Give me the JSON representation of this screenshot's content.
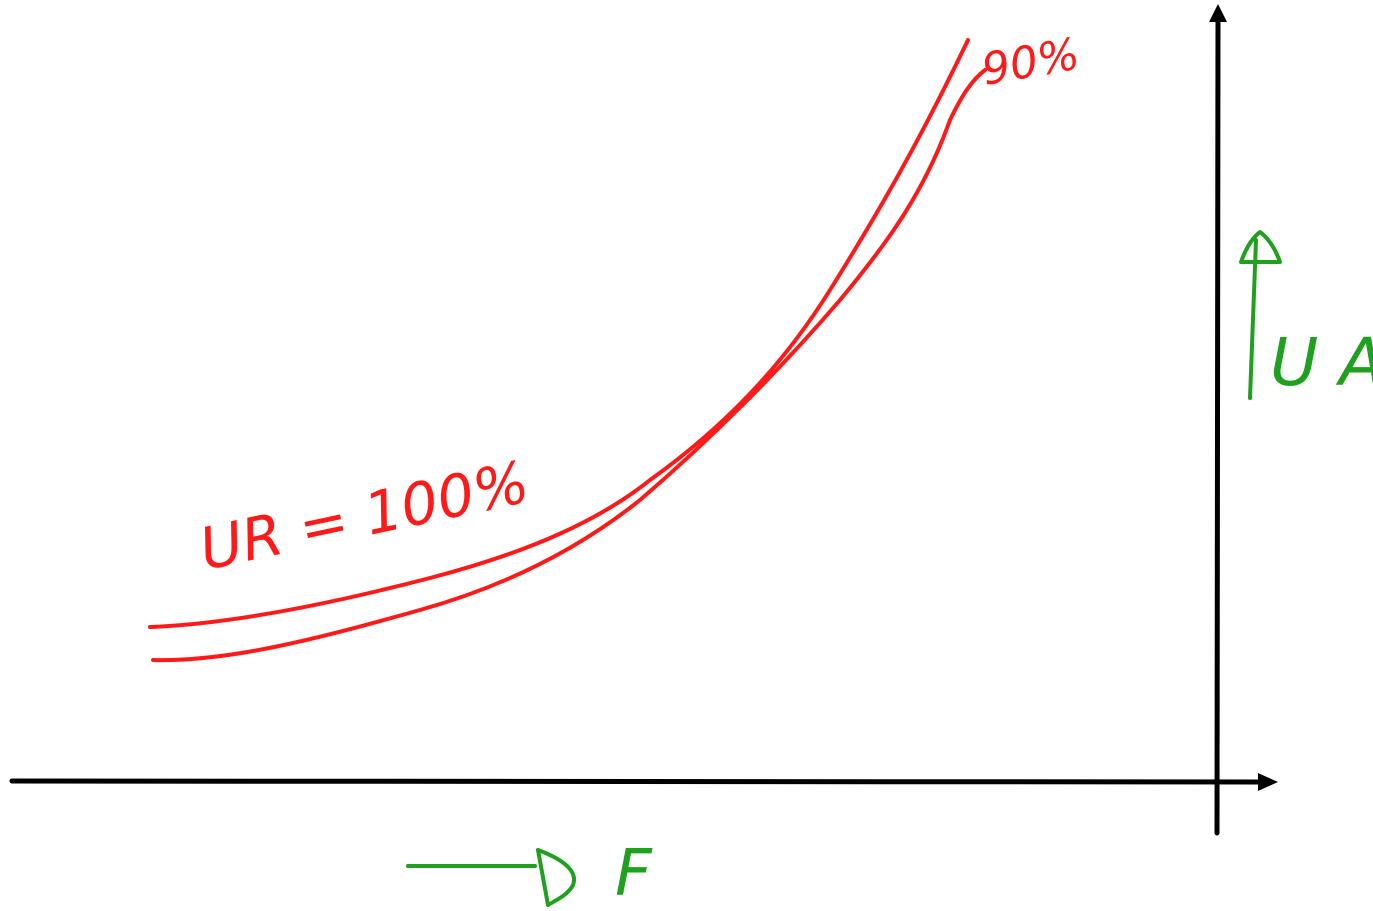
{
  "labels": {
    "curve_upper": "UR = 100%",
    "curve_lower": "90%",
    "y_axis": "U A",
    "x_axis": "F"
  },
  "colors": {
    "axes": "#000000",
    "curves": "#ff1a1a",
    "annotations": "#1fa01f",
    "background": "#ffffff"
  },
  "icons": {
    "y_direction": "arrow-up-icon",
    "x_direction": "arrow-right-icon"
  }
}
